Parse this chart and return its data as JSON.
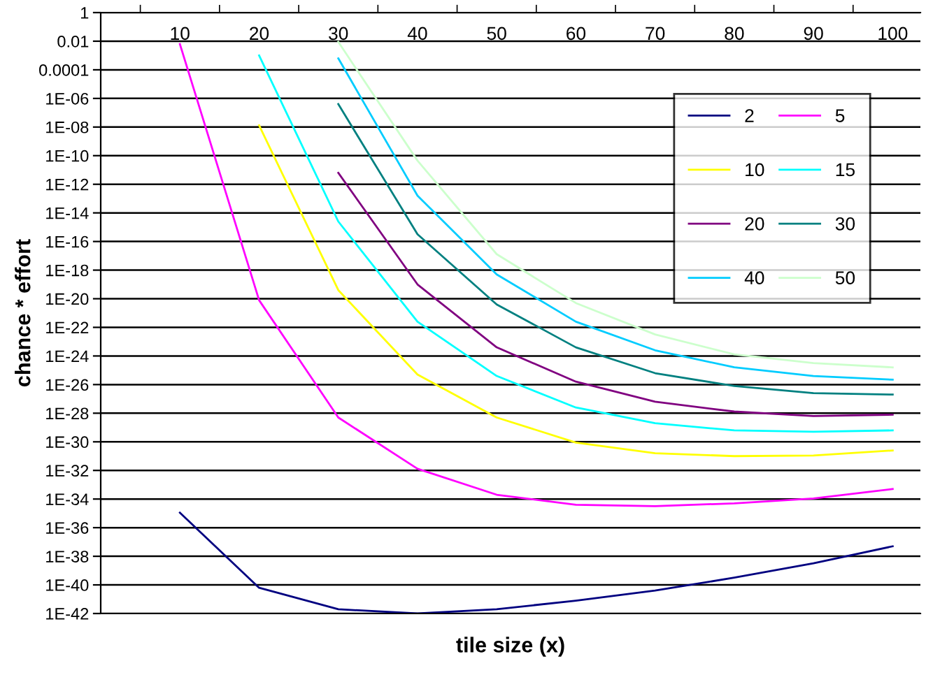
{
  "chart_data": {
    "type": "line",
    "xlabel": "tile size (x)",
    "ylabel": "chance * effort",
    "log": "y",
    "grid": "y",
    "legend": "top right",
    "marker": "none",
    "line_style": "solid",
    "categories": [
      "10",
      "20",
      "30",
      "40",
      "50",
      "60",
      "70",
      "80",
      "90",
      "100"
    ],
    "ylim": [
      1e-42,
      1
    ],
    "yticks": [
      1,
      0.01,
      0.0001,
      {
        "value": 1e-06,
        "label": "1E-06"
      },
      {
        "value": 1e-08,
        "label": "1E-08"
      },
      {
        "value": 1e-10,
        "label": "1E-10"
      },
      {
        "value": 1e-12,
        "label": "1E-12"
      },
      {
        "value": 1e-14,
        "label": "1E-14"
      },
      {
        "value": 1e-16,
        "label": "1E-16"
      },
      {
        "value": 1e-18,
        "label": "1E-18"
      },
      {
        "value": 1e-20,
        "label": "1E-20"
      },
      {
        "value": 1e-22,
        "label": "1E-22"
      },
      {
        "value": 1e-24,
        "label": "1E-24"
      },
      {
        "value": 1e-26,
        "label": "1E-26"
      },
      {
        "value": 1e-28,
        "label": "1E-28"
      },
      {
        "value": 1e-30,
        "label": "1E-30"
      },
      {
        "value": 1e-32,
        "label": "1E-32"
      },
      {
        "value": 1e-34,
        "label": "1E-34"
      },
      {
        "value": 1e-36,
        "label": "1E-36"
      },
      {
        "value": 1e-38,
        "label": "1E-38"
      },
      {
        "value": 1e-40,
        "label": "1E-40"
      },
      {
        "value": 1e-42,
        "label": "1E-42"
      }
    ],
    "series": [
      {
        "name": "2",
        "color": "#000080",
        "values": [
          1.1e-35,
          6.3e-41,
          2e-42,
          1e-42,
          2e-42,
          7.9e-42,
          4e-41,
          3.2e-40,
          3.2e-39,
          5e-38
        ]
      },
      {
        "name": "5",
        "color": "#ff00ff",
        "values": [
          0.0063,
          7.9e-21,
          5e-29,
          1.3e-32,
          2e-34,
          4e-35,
          3.2e-35,
          5e-35,
          1.1e-34,
          5e-34
        ]
      },
      {
        "name": "10",
        "color": "#ffff00",
        "values": [
          null,
          1.3e-08,
          4e-20,
          5e-26,
          5e-29,
          8.9e-31,
          1.6e-31,
          1e-31,
          1.1e-31,
          2.5e-31
        ]
      },
      {
        "name": "15",
        "color": "#00ffff",
        "values": [
          null,
          0.001,
          2.5e-15,
          2.5e-22,
          4e-26,
          2.5e-28,
          2e-29,
          6.3e-30,
          5e-30,
          6.3e-30
        ]
      },
      {
        "name": "20",
        "color": "#800080",
        "values": [
          null,
          null,
          6.3e-12,
          1e-19,
          4e-24,
          1.6e-26,
          6.3e-28,
          1.3e-28,
          6.3e-29,
          7.9e-29
        ]
      },
      {
        "name": "30",
        "color": "#008080",
        "values": [
          null,
          null,
          4e-07,
          3.2e-16,
          4e-21,
          4e-24,
          6.3e-26,
          7.9e-27,
          2.5e-27,
          2e-27
        ]
      },
      {
        "name": "40",
        "color": "#00ccff",
        "values": [
          null,
          null,
          0.00063,
          1.6e-13,
          5e-19,
          2.5e-22,
          2.5e-24,
          1.6e-25,
          4e-26,
          2.2e-26
        ]
      },
      {
        "name": "50",
        "color": "#ccffcc",
        "values": [
          null,
          null,
          0.0089,
          4.5e-11,
          1.3e-17,
          5e-21,
          3.2e-23,
          1.3e-24,
          3.2e-25,
          1.6e-25
        ]
      }
    ]
  }
}
